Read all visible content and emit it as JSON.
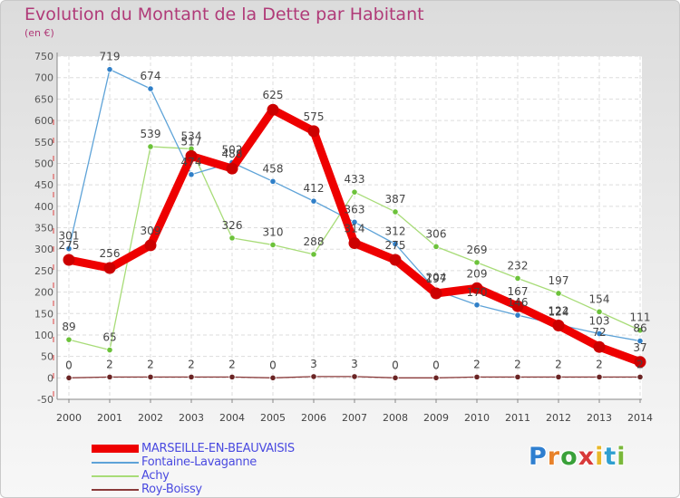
{
  "header": {
    "title": "Evolution du Montant de la Dette par Habitant",
    "subtitle": "(en €)"
  },
  "logo": {
    "text": "Proxiti",
    "letters": [
      "P",
      "r",
      "o",
      "x",
      "i",
      "t",
      "i"
    ],
    "letter_colors": [
      "#2f7fd0",
      "#e8822a",
      "#3aa13a",
      "#d83a3a",
      "#e8b82a",
      "#2f9fd0",
      "#7ab83a"
    ]
  },
  "chart_data": {
    "type": "line",
    "title": "Evolution du Montant de la Dette par Habitant",
    "ylabel": "(en €)",
    "xlabel": "",
    "x": [
      2000,
      2001,
      2002,
      2003,
      2004,
      2005,
      2006,
      2007,
      2008,
      2009,
      2010,
      2011,
      2012,
      2013,
      2014
    ],
    "ylim": [
      -50,
      750
    ],
    "ytick_step": 50,
    "grid": true,
    "legend_position": "bottom-left",
    "series": [
      {
        "name": "MARSEILLE-EN-BEAUVAISIS",
        "color": "#ee0000",
        "marker_color": "#cc0000",
        "values": [
          275,
          256,
          309,
          517,
          488,
          625,
          575,
          314,
          275,
          197,
          209,
          167,
          122,
          72,
          37
        ],
        "labels": [
          "275",
          "256",
          "309",
          "517",
          "488",
          "625",
          "575",
          "314",
          "275",
          "197",
          "209",
          "167",
          "122",
          "72",
          "37"
        ]
      },
      {
        "name": "Fontaine-Lavaganne",
        "color": "#5ea3d8",
        "marker_color": "#2f7fc8",
        "values": [
          301,
          719,
          674,
          474,
          502,
          458,
          412,
          363,
          312,
          204,
          170,
          146,
          124,
          103,
          86
        ],
        "labels": [
          "301",
          "719",
          "674",
          "474",
          "502",
          "458",
          "412",
          "363",
          "312",
          "204",
          "170",
          "146",
          "124",
          "103",
          "86"
        ]
      },
      {
        "name": "Achy",
        "color": "#a8dc78",
        "marker_color": "#6cc23a",
        "values": [
          89,
          65,
          539,
          534,
          326,
          310,
          288,
          433,
          387,
          306,
          269,
          232,
          197,
          154,
          111
        ],
        "labels": [
          "89",
          "65",
          "539",
          "534",
          "326",
          "310",
          "288",
          "433",
          "387",
          "306",
          "269",
          "232",
          "197",
          "154",
          "111"
        ]
      },
      {
        "name": "Roy-Boissy",
        "color": "#8a3a3a",
        "marker_color": "#6a2424",
        "values": [
          0,
          2,
          2,
          2,
          2,
          0,
          3,
          3,
          0,
          0,
          2,
          2,
          2,
          2,
          2
        ],
        "labels": [
          "0",
          "2",
          "2",
          "2",
          "2",
          "0",
          "3",
          "3",
          "0",
          "0",
          "2",
          "2",
          "2",
          "2",
          "2"
        ]
      }
    ]
  }
}
